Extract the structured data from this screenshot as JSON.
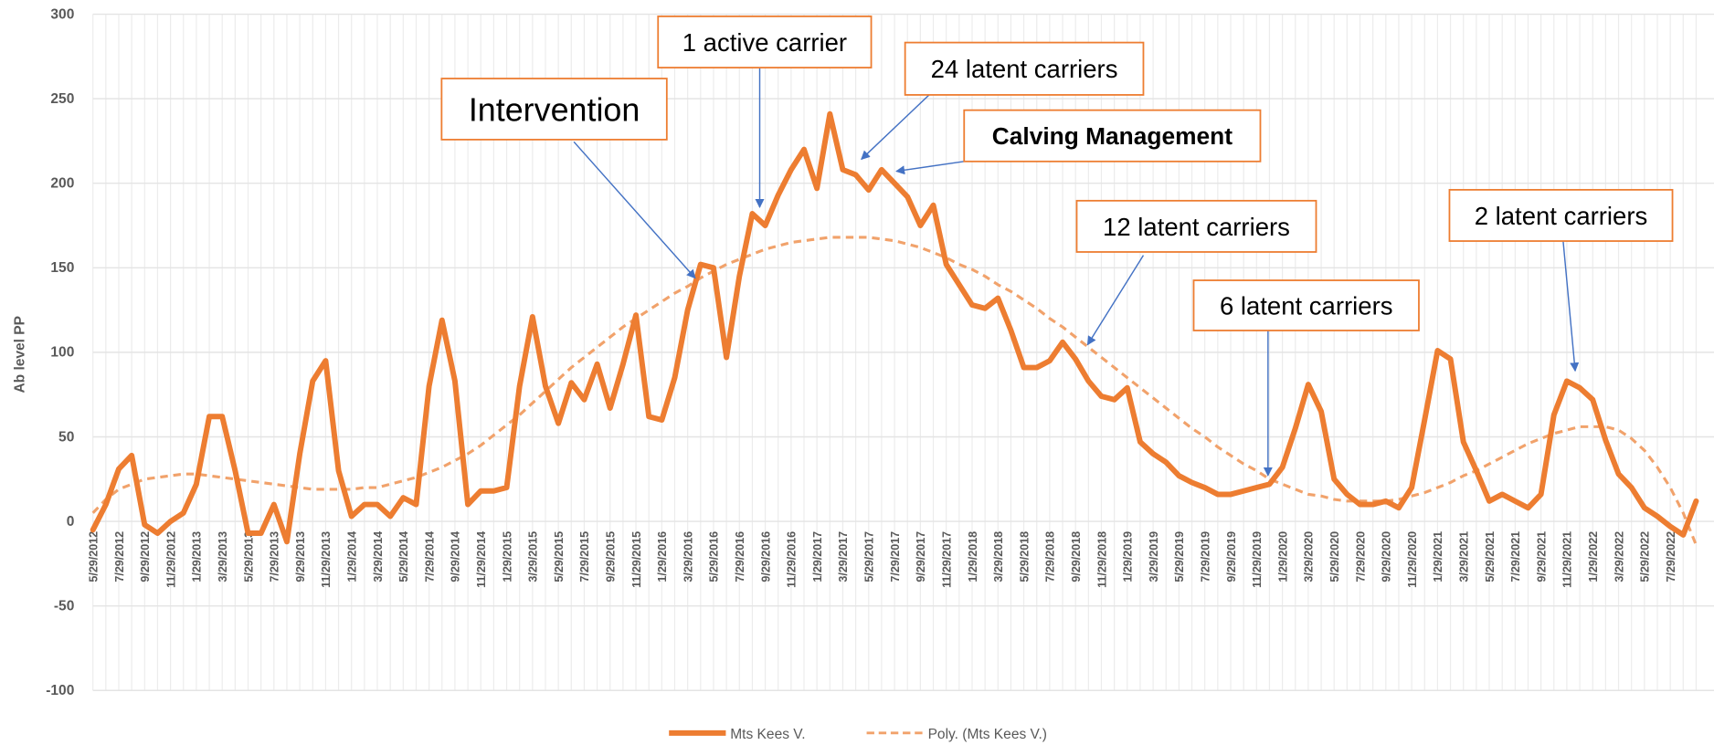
{
  "chart_data": {
    "type": "line",
    "y_label": "Ab level PP",
    "ylim": [
      -100,
      300
    ],
    "yticks": [
      -100,
      -50,
      0,
      50,
      100,
      150,
      200,
      250,
      300
    ],
    "grid": true,
    "legend": "bottom",
    "categories": [
      "5/29/2012",
      null,
      "7/29/2012",
      null,
      "9/29/2012",
      null,
      "11/29/2012",
      null,
      "1/29/2013",
      null,
      "3/29/2013",
      null,
      "5/29/2013",
      null,
      "7/29/2013",
      null,
      "9/29/2013",
      null,
      "11/29/2013",
      null,
      "1/29/2014",
      null,
      "3/29/2014",
      null,
      "5/29/2014",
      null,
      "7/29/2014",
      null,
      "9/29/2014",
      null,
      "11/29/2014",
      null,
      "1/29/2015",
      null,
      "3/29/2015",
      null,
      "5/29/2015",
      null,
      "7/29/2015",
      null,
      "9/29/2015",
      null,
      "11/29/2015",
      null,
      "1/29/2016",
      null,
      "3/29/2016",
      null,
      "5/29/2016",
      null,
      "7/29/2016",
      null,
      "9/29/2016",
      null,
      "11/29/2016",
      null,
      "1/29/2017",
      null,
      "3/29/2017",
      null,
      "5/29/2017",
      null,
      "7/29/2017",
      null,
      "9/29/2017",
      null,
      "11/29/2017",
      null,
      "1/29/2018",
      null,
      "3/29/2018",
      null,
      "5/29/2018",
      null,
      "7/29/2018",
      null,
      "9/29/2018",
      null,
      "11/29/2018",
      null,
      "1/29/2019",
      null,
      "3/29/2019",
      null,
      "5/29/2019",
      null,
      "7/29/2019",
      null,
      "9/29/2019",
      null,
      "11/29/2019",
      null,
      "1/29/2020",
      null,
      "3/29/2020",
      null,
      "5/29/2020",
      null,
      "7/29/2020",
      null,
      "9/29/2020",
      null,
      "11/29/2020",
      null,
      "1/29/2021",
      null,
      "3/29/2021",
      null,
      "5/29/2021",
      null,
      "7/29/2021",
      null,
      "9/29/2021",
      null,
      "11/29/2021",
      null,
      "1/29/2022",
      null,
      "3/29/2022",
      null,
      "5/29/2022",
      null,
      "7/29/2022",
      null,
      null
    ],
    "series": [
      {
        "name": "Mts Kees V.",
        "color": "#ED7D31",
        "dashed": false,
        "values": [
          -5,
          10,
          31,
          39,
          -2,
          -7,
          0,
          5,
          22,
          62,
          62,
          30,
          -7,
          -7,
          10,
          -12,
          40,
          83,
          95,
          30,
          3,
          10,
          10,
          3,
          14,
          10,
          80,
          119,
          83,
          10,
          18,
          18,
          20,
          80,
          121,
          80,
          58,
          82,
          72,
          93,
          67,
          93,
          122,
          62,
          60,
          85,
          125,
          152,
          150,
          97,
          145,
          182,
          175,
          193,
          208,
          220,
          197,
          241,
          208,
          205,
          196,
          208,
          200,
          192,
          175,
          187,
          152,
          140,
          128,
          126,
          132,
          113,
          91,
          91,
          95,
          106,
          96,
          83,
          74,
          72,
          79,
          47,
          40,
          35,
          27,
          23,
          20,
          16,
          16,
          18,
          20,
          22,
          32,
          55,
          81,
          65,
          25,
          16,
          10,
          10,
          12,
          8,
          20,
          60,
          101,
          96,
          47,
          30,
          12,
          16,
          12,
          8,
          16,
          63,
          83,
          79,
          72,
          48,
          28,
          20,
          8,
          3,
          -3,
          -8,
          12
        ]
      },
      {
        "name": "Poly. (Mts Kees V.)",
        "color": "#F1A26B",
        "dashed": true,
        "values": [
          5,
          13,
          19,
          22,
          25,
          26,
          27,
          28,
          28,
          27,
          26,
          25,
          24,
          23,
          22,
          21,
          20,
          19,
          19,
          19,
          19,
          20,
          20,
          22,
          24,
          26,
          29,
          32,
          36,
          40,
          45,
          51,
          57,
          63,
          70,
          77,
          84,
          91,
          97,
          103,
          109,
          115,
          120,
          125,
          130,
          135,
          139,
          144,
          148,
          152,
          155,
          158,
          161,
          163,
          165,
          166,
          167,
          168,
          168,
          168,
          168,
          167,
          166,
          164,
          162,
          159,
          156,
          152,
          149,
          145,
          140,
          136,
          131,
          126,
          120,
          115,
          109,
          103,
          97,
          91,
          85,
          79,
          73,
          67,
          61,
          55,
          50,
          44,
          39,
          34,
          30,
          25,
          22,
          19,
          16,
          15,
          13,
          12,
          12,
          12,
          12,
          13,
          15,
          17,
          20,
          23,
          27,
          30,
          34,
          38,
          42,
          46,
          49,
          52,
          54,
          56,
          56,
          56,
          54,
          49,
          42,
          32,
          20,
          5,
          -14
        ]
      }
    ],
    "annotations": [
      {
        "text": "Intervention"
      },
      {
        "text": "1 active carrier"
      },
      {
        "text": "24 latent carriers"
      },
      {
        "text": "Calving Management"
      },
      {
        "text": "12 latent carriers"
      },
      {
        "text": "6 latent carriers"
      },
      {
        "text": "2 latent carriers"
      }
    ]
  }
}
